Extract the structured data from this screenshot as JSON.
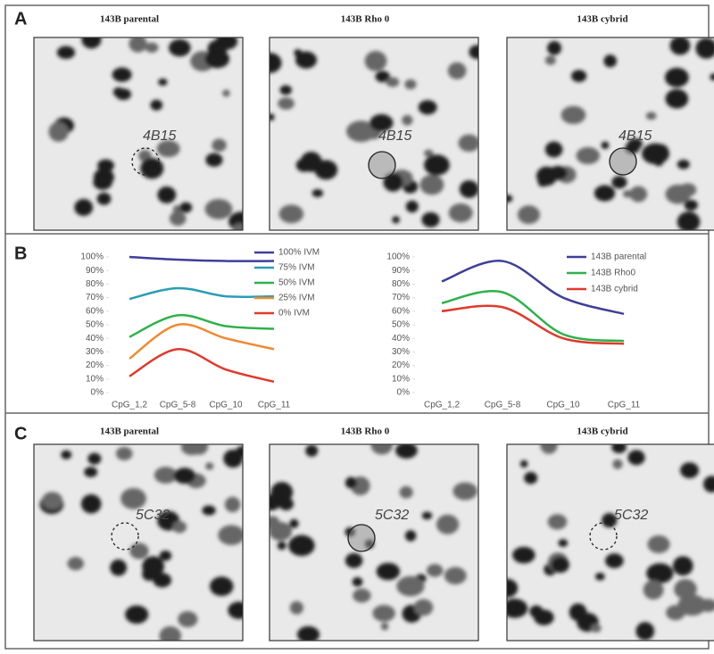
{
  "panel_labels": [
    "A",
    "B",
    "C"
  ],
  "panel_a": {
    "images": [
      {
        "title": "143B parental",
        "spot": "4B15"
      },
      {
        "title": "143B Rho 0",
        "spot": "4B15"
      },
      {
        "title": "143B cybrid",
        "spot": "4B15"
      }
    ]
  },
  "panel_c": {
    "images": [
      {
        "title": "143B parental",
        "spot": "5C32"
      },
      {
        "title": "143B Rho 0",
        "spot": "5C32"
      },
      {
        "title": "143B cybrid",
        "spot": "5C32"
      }
    ]
  },
  "chart_data": [
    {
      "type": "line",
      "categories": [
        "CpG_1,2",
        "CpG_5-8",
        "CpG_10",
        "CpG_11"
      ],
      "series": [
        {
          "name": "100% IVM",
          "color": "#3f3f9a",
          "values": [
            100,
            98,
            97,
            97
          ]
        },
        {
          "name": "75% IVM",
          "color": "#2a9db5",
          "values": [
            69,
            77,
            71,
            71
          ]
        },
        {
          "name": "50% IVM",
          "color": "#2eb14c",
          "values": [
            41,
            57,
            49,
            47
          ]
        },
        {
          "name": "25% IVM",
          "color": "#f08a30",
          "values": [
            25,
            50,
            40,
            32
          ]
        },
        {
          "name": "0% IVM",
          "color": "#e0392b",
          "values": [
            12,
            32,
            17,
            8
          ]
        }
      ],
      "ylim": [
        0,
        100
      ],
      "yticks": [
        {
          "value": 0,
          "label": "0%"
        },
        {
          "value": 10,
          "label": "10%"
        },
        {
          "value": 20,
          "label": "20%"
        },
        {
          "value": 30,
          "label": "30%"
        },
        {
          "value": 40,
          "label": "40%"
        },
        {
          "value": 50,
          "label": "50%"
        },
        {
          "value": 60,
          "label": "60%"
        },
        {
          "value": 70,
          "label": "70%"
        },
        {
          "value": 80,
          "label": "80%"
        },
        {
          "value": 90,
          "label": "90%"
        },
        {
          "value": 100,
          "label": "100%"
        }
      ]
    },
    {
      "type": "line",
      "categories": [
        "CpG_1,2",
        "CpG_5-8",
        "CpG_10",
        "CpG_11"
      ],
      "series": [
        {
          "name": "143B parental",
          "color": "#3f3f9a",
          "values": [
            82,
            97,
            70,
            58
          ]
        },
        {
          "name": "143B Rho0",
          "color": "#2eb14c",
          "values": [
            66,
            74,
            43,
            38
          ]
        },
        {
          "name": "143B cybrid",
          "color": "#e0392b",
          "values": [
            60,
            63,
            40,
            36
          ]
        }
      ],
      "ylim": [
        0,
        100
      ],
      "yticks": [
        {
          "value": 0,
          "label": "0%"
        },
        {
          "value": 10,
          "label": "10%"
        },
        {
          "value": 20,
          "label": "20%"
        },
        {
          "value": 30,
          "label": "30%"
        },
        {
          "value": 40,
          "label": "40%"
        },
        {
          "value": 50,
          "label": "50%"
        },
        {
          "value": 60,
          "label": "60%"
        },
        {
          "value": 70,
          "label": "70%"
        },
        {
          "value": 80,
          "label": "80%"
        },
        {
          "value": 90,
          "label": "90%"
        },
        {
          "value": 100,
          "label": "100%"
        }
      ]
    }
  ]
}
